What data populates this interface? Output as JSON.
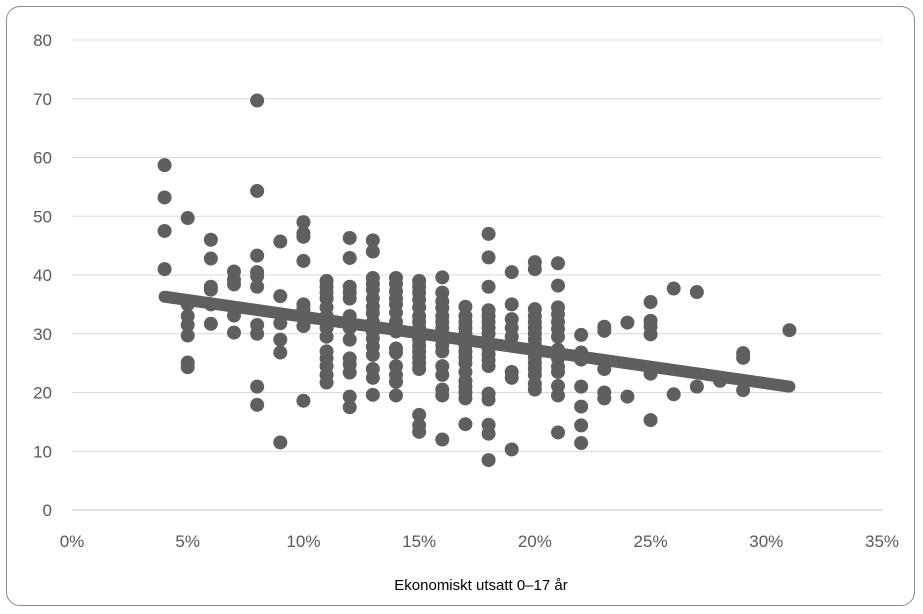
{
  "chart_data": {
    "type": "scatter",
    "xlabel": "Ekonomiskt utsatt 0–17 år",
    "ylabel": "",
    "title": "",
    "x_format": "percent",
    "xlim": [
      0,
      0.35
    ],
    "ylim": [
      0,
      80
    ],
    "x_ticks": [
      0,
      0.05,
      0.1,
      0.15,
      0.2,
      0.25,
      0.3,
      0.35
    ],
    "x_tick_labels": [
      "0%",
      "5%",
      "10%",
      "15%",
      "20%",
      "25%",
      "30%",
      "35%"
    ],
    "y_ticks": [
      0,
      10,
      20,
      30,
      40,
      50,
      60,
      70,
      80
    ],
    "y_tick_labels": [
      "0",
      "10",
      "20",
      "30",
      "40",
      "50",
      "60",
      "70",
      "80"
    ],
    "grid": "horizontal",
    "colors": {
      "points": "#5f5f5f",
      "trendline": "#5f5f5f",
      "grid": "#d9d9d9",
      "axis_text": "#595959"
    },
    "trendline": {
      "x": [
        0.04,
        0.31
      ],
      "y": [
        36.3,
        21.0
      ]
    },
    "points": [
      [
        0.04,
        58.7
      ],
      [
        0.04,
        53.2
      ],
      [
        0.04,
        47.5
      ],
      [
        0.04,
        41.0
      ],
      [
        0.05,
        49.7
      ],
      [
        0.05,
        35.0
      ],
      [
        0.05,
        33.0
      ],
      [
        0.05,
        31.5
      ],
      [
        0.05,
        29.7
      ],
      [
        0.05,
        25.1
      ],
      [
        0.05,
        24.3
      ],
      [
        0.06,
        46.0
      ],
      [
        0.06,
        42.8
      ],
      [
        0.06,
        38.0
      ],
      [
        0.06,
        37.5
      ],
      [
        0.06,
        35.0
      ],
      [
        0.06,
        31.7
      ],
      [
        0.07,
        40.6
      ],
      [
        0.07,
        39.2
      ],
      [
        0.07,
        38.4
      ],
      [
        0.07,
        33.1
      ],
      [
        0.07,
        30.2
      ],
      [
        0.08,
        69.7
      ],
      [
        0.08,
        54.3
      ],
      [
        0.08,
        43.3
      ],
      [
        0.08,
        40.5
      ],
      [
        0.08,
        39.8
      ],
      [
        0.08,
        38.0
      ],
      [
        0.08,
        31.5
      ],
      [
        0.08,
        30.0
      ],
      [
        0.08,
        21.0
      ],
      [
        0.08,
        17.9
      ],
      [
        0.09,
        45.7
      ],
      [
        0.09,
        36.4
      ],
      [
        0.09,
        31.8
      ],
      [
        0.09,
        29.0
      ],
      [
        0.09,
        26.8
      ],
      [
        0.09,
        11.5
      ],
      [
        0.1,
        49.0
      ],
      [
        0.1,
        47.1
      ],
      [
        0.1,
        46.5
      ],
      [
        0.1,
        42.4
      ],
      [
        0.1,
        35.0
      ],
      [
        0.1,
        34.2
      ],
      [
        0.1,
        31.3
      ],
      [
        0.1,
        18.6
      ],
      [
        0.11,
        39.0
      ],
      [
        0.11,
        38.0
      ],
      [
        0.11,
        37.0
      ],
      [
        0.11,
        36.0
      ],
      [
        0.11,
        34.5
      ],
      [
        0.11,
        33.0
      ],
      [
        0.11,
        31.0
      ],
      [
        0.11,
        29.5
      ],
      [
        0.11,
        27.0
      ],
      [
        0.11,
        25.8
      ],
      [
        0.11,
        24.5
      ],
      [
        0.11,
        23.0
      ],
      [
        0.11,
        21.7
      ],
      [
        0.12,
        46.3
      ],
      [
        0.12,
        42.9
      ],
      [
        0.12,
        38.0
      ],
      [
        0.12,
        37.0
      ],
      [
        0.12,
        36.0
      ],
      [
        0.12,
        33.0
      ],
      [
        0.12,
        32.0
      ],
      [
        0.12,
        31.0
      ],
      [
        0.12,
        29.0
      ],
      [
        0.12,
        25.8
      ],
      [
        0.12,
        24.8
      ],
      [
        0.12,
        23.4
      ],
      [
        0.12,
        19.3
      ],
      [
        0.12,
        17.5
      ],
      [
        0.13,
        45.9
      ],
      [
        0.13,
        44.0
      ],
      [
        0.13,
        39.5
      ],
      [
        0.13,
        38.5
      ],
      [
        0.13,
        37.5
      ],
      [
        0.13,
        36.0
      ],
      [
        0.13,
        34.6
      ],
      [
        0.13,
        33.5
      ],
      [
        0.13,
        32.0
      ],
      [
        0.13,
        30.3
      ],
      [
        0.13,
        29.2
      ],
      [
        0.13,
        27.8
      ],
      [
        0.13,
        26.4
      ],
      [
        0.13,
        24.0
      ],
      [
        0.13,
        22.5
      ],
      [
        0.13,
        19.6
      ],
      [
        0.14,
        39.5
      ],
      [
        0.14,
        38.5
      ],
      [
        0.14,
        37.2
      ],
      [
        0.14,
        36.0
      ],
      [
        0.14,
        35.0
      ],
      [
        0.14,
        33.6
      ],
      [
        0.14,
        32.0
      ],
      [
        0.14,
        30.4
      ],
      [
        0.14,
        27.5
      ],
      [
        0.14,
        26.8
      ],
      [
        0.14,
        24.5
      ],
      [
        0.14,
        23.0
      ],
      [
        0.14,
        21.8
      ],
      [
        0.14,
        19.5
      ],
      [
        0.15,
        39.0
      ],
      [
        0.15,
        38.0
      ],
      [
        0.15,
        37.0
      ],
      [
        0.15,
        35.8
      ],
      [
        0.15,
        34.5
      ],
      [
        0.15,
        33.0
      ],
      [
        0.15,
        32.0
      ],
      [
        0.15,
        31.0
      ],
      [
        0.15,
        30.0
      ],
      [
        0.15,
        29.0
      ],
      [
        0.15,
        28.0
      ],
      [
        0.15,
        27.0
      ],
      [
        0.15,
        26.0
      ],
      [
        0.15,
        25.0
      ],
      [
        0.15,
        24.0
      ],
      [
        0.15,
        16.2
      ],
      [
        0.15,
        14.4
      ],
      [
        0.15,
        13.3
      ],
      [
        0.16,
        39.6
      ],
      [
        0.16,
        37.0
      ],
      [
        0.16,
        35.5
      ],
      [
        0.16,
        34.4
      ],
      [
        0.16,
        33.0
      ],
      [
        0.16,
        32.0
      ],
      [
        0.16,
        31.0
      ],
      [
        0.16,
        30.0
      ],
      [
        0.16,
        29.0
      ],
      [
        0.16,
        28.0
      ],
      [
        0.16,
        27.0
      ],
      [
        0.16,
        24.5
      ],
      [
        0.16,
        23.0
      ],
      [
        0.16,
        20.5
      ],
      [
        0.16,
        19.5
      ],
      [
        0.16,
        12.0
      ],
      [
        0.17,
        34.6
      ],
      [
        0.17,
        33.0
      ],
      [
        0.17,
        32.0
      ],
      [
        0.17,
        31.0
      ],
      [
        0.17,
        30.0
      ],
      [
        0.17,
        29.0
      ],
      [
        0.17,
        28.0
      ],
      [
        0.17,
        27.0
      ],
      [
        0.17,
        26.0
      ],
      [
        0.17,
        25.0
      ],
      [
        0.17,
        23.5
      ],
      [
        0.17,
        22.0
      ],
      [
        0.17,
        21.0
      ],
      [
        0.17,
        20.0
      ],
      [
        0.17,
        19.0
      ],
      [
        0.17,
        14.6
      ],
      [
        0.18,
        47.0
      ],
      [
        0.18,
        43.0
      ],
      [
        0.18,
        38.0
      ],
      [
        0.18,
        34.0
      ],
      [
        0.18,
        33.0
      ],
      [
        0.18,
        32.0
      ],
      [
        0.18,
        31.0
      ],
      [
        0.18,
        30.0
      ],
      [
        0.18,
        28.5
      ],
      [
        0.18,
        27.5
      ],
      [
        0.18,
        26.5
      ],
      [
        0.18,
        25.5
      ],
      [
        0.18,
        24.5
      ],
      [
        0.18,
        19.8
      ],
      [
        0.18,
        18.8
      ],
      [
        0.18,
        14.5
      ],
      [
        0.18,
        13.0
      ],
      [
        0.18,
        8.5
      ],
      [
        0.19,
        40.5
      ],
      [
        0.19,
        35.0
      ],
      [
        0.19,
        32.5
      ],
      [
        0.19,
        31.0
      ],
      [
        0.19,
        29.5
      ],
      [
        0.19,
        28.0
      ],
      [
        0.19,
        23.5
      ],
      [
        0.19,
        22.5
      ],
      [
        0.19,
        10.3
      ],
      [
        0.2,
        42.2
      ],
      [
        0.2,
        41.0
      ],
      [
        0.2,
        34.2
      ],
      [
        0.2,
        33.0
      ],
      [
        0.2,
        32.0
      ],
      [
        0.2,
        31.0
      ],
      [
        0.2,
        30.0
      ],
      [
        0.2,
        29.0
      ],
      [
        0.2,
        28.0
      ],
      [
        0.2,
        27.0
      ],
      [
        0.2,
        26.0
      ],
      [
        0.2,
        25.0
      ],
      [
        0.2,
        24.0
      ],
      [
        0.2,
        23.0
      ],
      [
        0.2,
        21.5
      ],
      [
        0.2,
        20.5
      ],
      [
        0.21,
        42.0
      ],
      [
        0.21,
        38.2
      ],
      [
        0.21,
        34.5
      ],
      [
        0.21,
        33.3
      ],
      [
        0.21,
        32.0
      ],
      [
        0.21,
        30.8
      ],
      [
        0.21,
        29.5
      ],
      [
        0.21,
        27.3
      ],
      [
        0.21,
        25.8
      ],
      [
        0.21,
        24.4
      ],
      [
        0.21,
        23.5
      ],
      [
        0.21,
        21.1
      ],
      [
        0.21,
        19.5
      ],
      [
        0.21,
        13.2
      ],
      [
        0.22,
        29.8
      ],
      [
        0.22,
        26.8
      ],
      [
        0.22,
        25.6
      ],
      [
        0.22,
        21.0
      ],
      [
        0.22,
        17.6
      ],
      [
        0.22,
        14.4
      ],
      [
        0.22,
        11.4
      ],
      [
        0.23,
        31.2
      ],
      [
        0.23,
        30.5
      ],
      [
        0.23,
        24.0
      ],
      [
        0.23,
        20.0
      ],
      [
        0.23,
        19.0
      ],
      [
        0.24,
        31.9
      ],
      [
        0.24,
        19.3
      ],
      [
        0.25,
        35.4
      ],
      [
        0.25,
        32.2
      ],
      [
        0.25,
        31.2
      ],
      [
        0.25,
        29.9
      ],
      [
        0.25,
        23.2
      ],
      [
        0.25,
        15.3
      ],
      [
        0.26,
        37.7
      ],
      [
        0.26,
        19.7
      ],
      [
        0.27,
        37.1
      ],
      [
        0.27,
        21.0
      ],
      [
        0.28,
        22.0
      ],
      [
        0.29,
        26.7
      ],
      [
        0.29,
        25.9
      ],
      [
        0.29,
        20.4
      ],
      [
        0.31,
        30.6
      ]
    ]
  }
}
